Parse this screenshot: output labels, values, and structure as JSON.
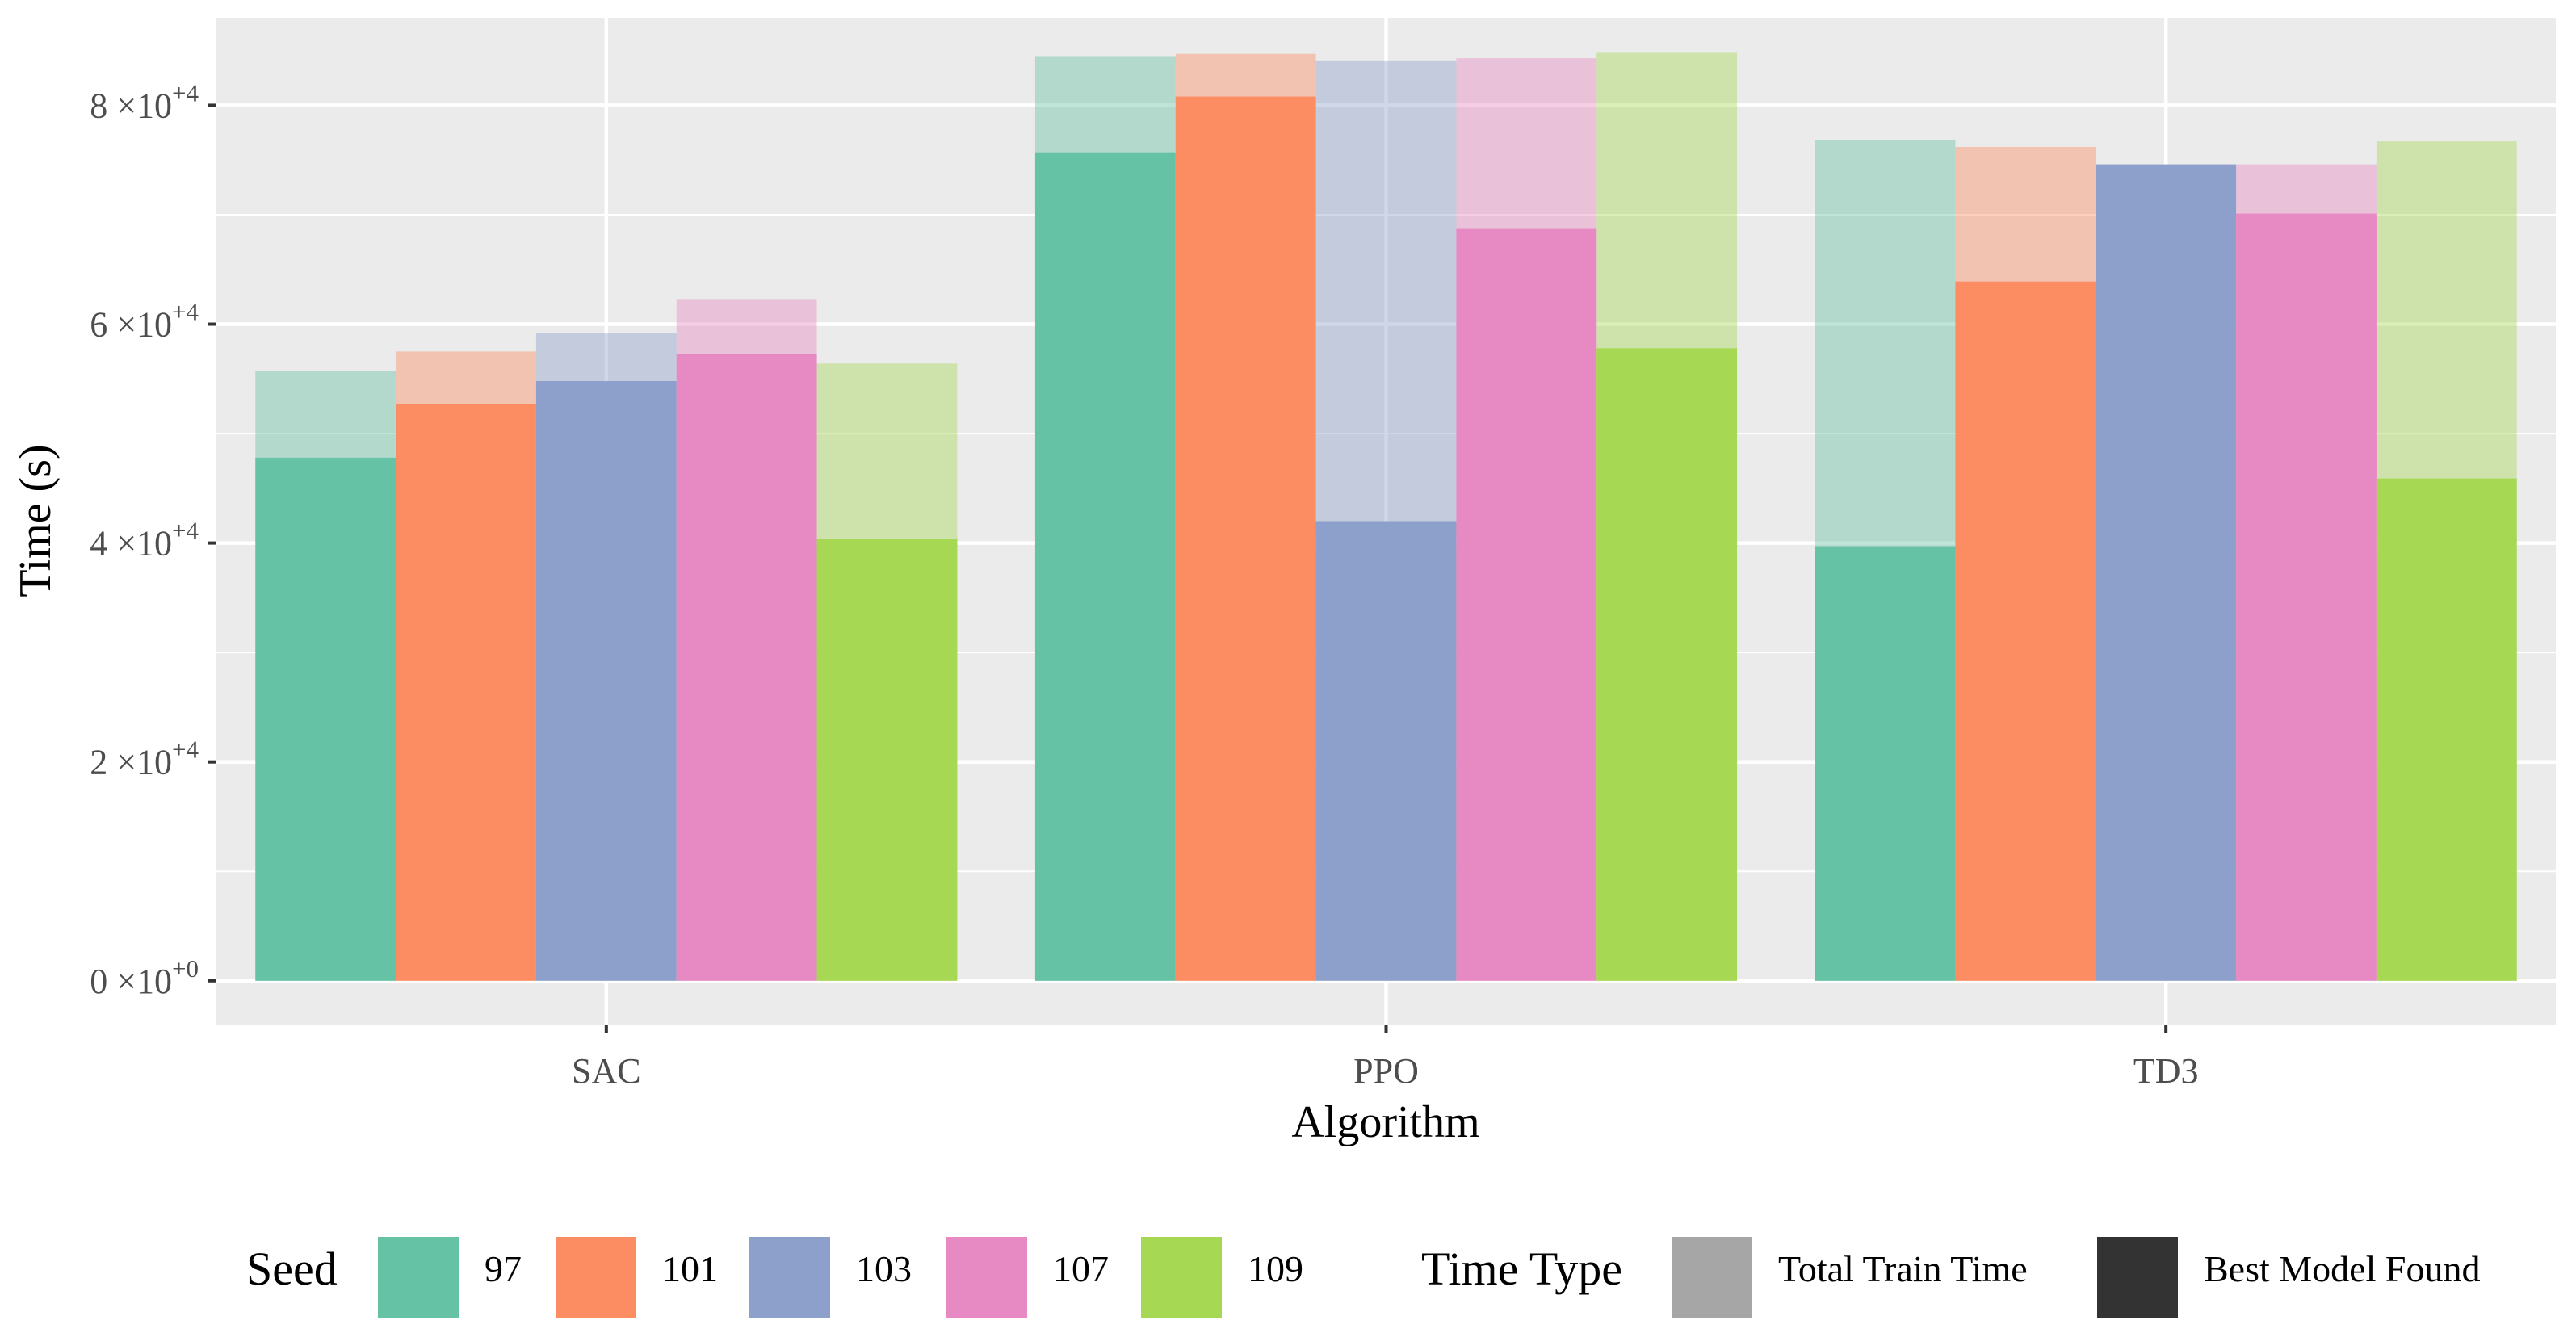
{
  "chart_data": {
    "type": "bar",
    "title": "",
    "xlabel": "Algorithm",
    "ylabel": "Time (s)",
    "ylim": [
      -4000,
      88000
    ],
    "yticks": [
      0,
      20000,
      40000,
      60000,
      80000
    ],
    "ytick_labels": [
      {
        "mantissa": "0",
        "times": "×10",
        "exp": "+0"
      },
      {
        "mantissa": "2",
        "times": "×10",
        "exp": "+4"
      },
      {
        "mantissa": "4",
        "times": "×10",
        "exp": "+4"
      },
      {
        "mantissa": "6",
        "times": "×10",
        "exp": "+4"
      },
      {
        "mantissa": "8",
        "times": "×10",
        "exp": "+4"
      }
    ],
    "categories": [
      "SAC",
      "PPO",
      "TD3"
    ],
    "series": [
      {
        "name": "97",
        "color": "#66C2A5",
        "total_train_time": [
          55700,
          84500,
          76800
        ],
        "best_model_found": [
          47800,
          75700,
          39700
        ]
      },
      {
        "name": "101",
        "color": "#FC8D62",
        "total_train_time": [
          57500,
          84700,
          76200
        ],
        "best_model_found": [
          52700,
          80800,
          63900
        ]
      },
      {
        "name": "103",
        "color": "#8DA0CB",
        "total_train_time": [
          59200,
          84100,
          74600
        ],
        "best_model_found": [
          54800,
          42000,
          74600
        ]
      },
      {
        "name": "107",
        "color": "#E78AC3",
        "total_train_time": [
          62300,
          84300,
          74600
        ],
        "best_model_found": [
          57300,
          68700,
          70100
        ]
      },
      {
        "name": "109",
        "color": "#A6D854",
        "total_train_time": [
          56400,
          84800,
          76700
        ],
        "best_model_found": [
          40400,
          57800,
          45900
        ]
      }
    ],
    "grid": true,
    "legend": {
      "position": "bottom",
      "seed_title": "Seed",
      "time_type_title": "Time Type",
      "time_types": [
        {
          "label": "Total Train Time",
          "color": "#A6A6A6"
        },
        {
          "label": "Best Model Found",
          "color": "#333333"
        }
      ]
    }
  }
}
